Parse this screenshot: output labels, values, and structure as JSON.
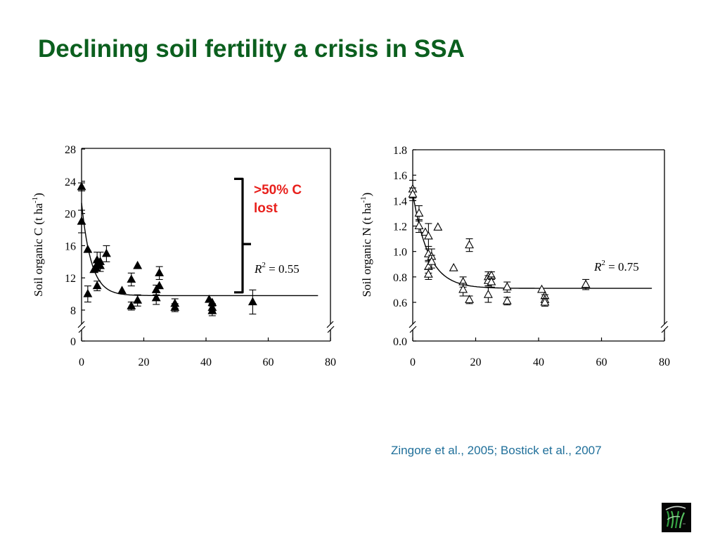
{
  "slide": {
    "title": "Declining soil fertility a crisis in SSA",
    "citation": "Zingore et al., 2005; Bostick et al., 2007",
    "title_color": "#0b5f1e",
    "citation_color": "#1f6f9a",
    "annotation_color": "#e8201c",
    "logo_icon": "crop-plants-logo-icon"
  },
  "chart_data": [
    {
      "type": "scatter",
      "xlabel": "",
      "ylabel": "Soil organic C (t ha-1)",
      "ylabel_main": "Soil organic C (t ha",
      "ylabel_exp": "-1",
      "ylabel_close": ")",
      "xlim": [
        0,
        80
      ],
      "xticks": [
        0,
        20,
        40,
        60,
        80
      ],
      "yticks": [
        8,
        12,
        16,
        20,
        24,
        28
      ],
      "ytick_labels": [
        "8",
        "12",
        "16",
        "20",
        "24",
        "28"
      ],
      "ylim": [
        8,
        28
      ],
      "y_break_value": 0,
      "y_break_label": "0",
      "marker": "filled-triangle",
      "r2_label": "R",
      "r2_exp": "2",
      "r2_value": " = 0.55",
      "annotation": [
        ">50% C",
        "lost"
      ],
      "bracket_range": [
        24.3,
        10.2
      ],
      "fit": {
        "a": 9.8,
        "b": 11.5,
        "k": 0.32,
        "x_end": 76
      },
      "points": [
        {
          "x": 0,
          "y": 23.3,
          "err": 0.5
        },
        {
          "x": 0,
          "y": 19.0,
          "err": 1.4
        },
        {
          "x": 2,
          "y": 15.5,
          "err": 0
        },
        {
          "x": 2,
          "y": 10.0,
          "err": 1.0
        },
        {
          "x": 4,
          "y": 13.0,
          "err": 0
        },
        {
          "x": 4.5,
          "y": 13.3,
          "err": 0
        },
        {
          "x": 5,
          "y": 14.2,
          "err": 1.0
        },
        {
          "x": 5,
          "y": 13.5,
          "err": 0.6
        },
        {
          "x": 5,
          "y": 11.0,
          "err": 0.6
        },
        {
          "x": 6,
          "y": 14.0,
          "err": 1.2
        },
        {
          "x": 6,
          "y": 13.5,
          "err": 0
        },
        {
          "x": 8,
          "y": 15.0,
          "err": 1.0
        },
        {
          "x": 13,
          "y": 10.4,
          "err": 0
        },
        {
          "x": 16,
          "y": 11.8,
          "err": 0.8
        },
        {
          "x": 16,
          "y": 8.5,
          "err": 0.5
        },
        {
          "x": 18,
          "y": 13.5,
          "err": 0
        },
        {
          "x": 18,
          "y": 9.2,
          "err": 0.7
        },
        {
          "x": 24,
          "y": 10.5,
          "err": 0.6
        },
        {
          "x": 24,
          "y": 9.5,
          "err": 0.8
        },
        {
          "x": 25,
          "y": 12.6,
          "err": 0.8
        },
        {
          "x": 25,
          "y": 11.0,
          "err": 0
        },
        {
          "x": 30,
          "y": 8.8,
          "err": 0.6
        },
        {
          "x": 30,
          "y": 8.3,
          "err": 0.5
        },
        {
          "x": 41,
          "y": 9.3,
          "err": 0
        },
        {
          "x": 42,
          "y": 8.9,
          "err": 0
        },
        {
          "x": 42,
          "y": 8.3,
          "err": 0.5
        },
        {
          "x": 42,
          "y": 7.9,
          "err": 0.6
        },
        {
          "x": 55,
          "y": 9.0,
          "err": 1.5
        }
      ]
    },
    {
      "type": "scatter",
      "xlabel": "",
      "ylabel": "Soil organic N (t ha-1)",
      "ylabel_main": "Soil organic N (t ha",
      "ylabel_exp": "-1",
      "ylabel_close": ")",
      "xlim": [
        0,
        80
      ],
      "xticks": [
        0,
        20,
        40,
        60,
        80
      ],
      "yticks": [
        0.6,
        0.8,
        1.0,
        1.2,
        1.4,
        1.6,
        1.8
      ],
      "ytick_labels": [
        "0.6",
        "0.8",
        "1.0",
        "1.2",
        "1.4",
        "1.6",
        "1.8"
      ],
      "ylim": [
        0.6,
        1.8
      ],
      "y_break_value": 0,
      "y_break_label": "0.0",
      "marker": "open-triangle",
      "r2_label": "R",
      "r2_exp": "2",
      "r2_value": " = 0.75",
      "fit": {
        "a": 0.71,
        "b": 0.75,
        "k": 0.2,
        "x_end": 76
      },
      "points": [
        {
          "x": 0,
          "y": 1.49,
          "err": 0.07
        },
        {
          "x": 0,
          "y": 1.45,
          "err": 0.05
        },
        {
          "x": 2,
          "y": 1.3,
          "err": 0.06
        },
        {
          "x": 2,
          "y": 1.2,
          "err": 0.05
        },
        {
          "x": 4,
          "y": 1.15,
          "err": 0
        },
        {
          "x": 5,
          "y": 1.12,
          "err": 0.1
        },
        {
          "x": 5,
          "y": 0.98,
          "err": 0.06
        },
        {
          "x": 5,
          "y": 0.88,
          "err": 0.05
        },
        {
          "x": 5,
          "y": 0.82,
          "err": 0.04
        },
        {
          "x": 6,
          "y": 0.96,
          "err": 0.06
        },
        {
          "x": 6,
          "y": 0.92,
          "err": 0.05
        },
        {
          "x": 8,
          "y": 1.19,
          "err": 0
        },
        {
          "x": 13,
          "y": 0.87,
          "err": 0
        },
        {
          "x": 16,
          "y": 0.76,
          "err": 0.04
        },
        {
          "x": 16,
          "y": 0.7,
          "err": 0.05
        },
        {
          "x": 18,
          "y": 1.05,
          "err": 0.05
        },
        {
          "x": 18,
          "y": 0.62,
          "err": 0.03
        },
        {
          "x": 24,
          "y": 0.8,
          "err": 0.04
        },
        {
          "x": 24,
          "y": 0.77,
          "err": 0.04
        },
        {
          "x": 24,
          "y": 0.66,
          "err": 0.06
        },
        {
          "x": 25,
          "y": 0.81,
          "err": 0.03
        },
        {
          "x": 25,
          "y": 0.76,
          "err": 0.04
        },
        {
          "x": 30,
          "y": 0.72,
          "err": 0.04
        },
        {
          "x": 30,
          "y": 0.61,
          "err": 0.03
        },
        {
          "x": 41,
          "y": 0.7,
          "err": 0
        },
        {
          "x": 42,
          "y": 0.65,
          "err": 0
        },
        {
          "x": 42,
          "y": 0.62,
          "err": 0.04
        },
        {
          "x": 42,
          "y": 0.6,
          "err": 0.03
        },
        {
          "x": 55,
          "y": 0.74,
          "err": 0.04
        }
      ]
    }
  ]
}
